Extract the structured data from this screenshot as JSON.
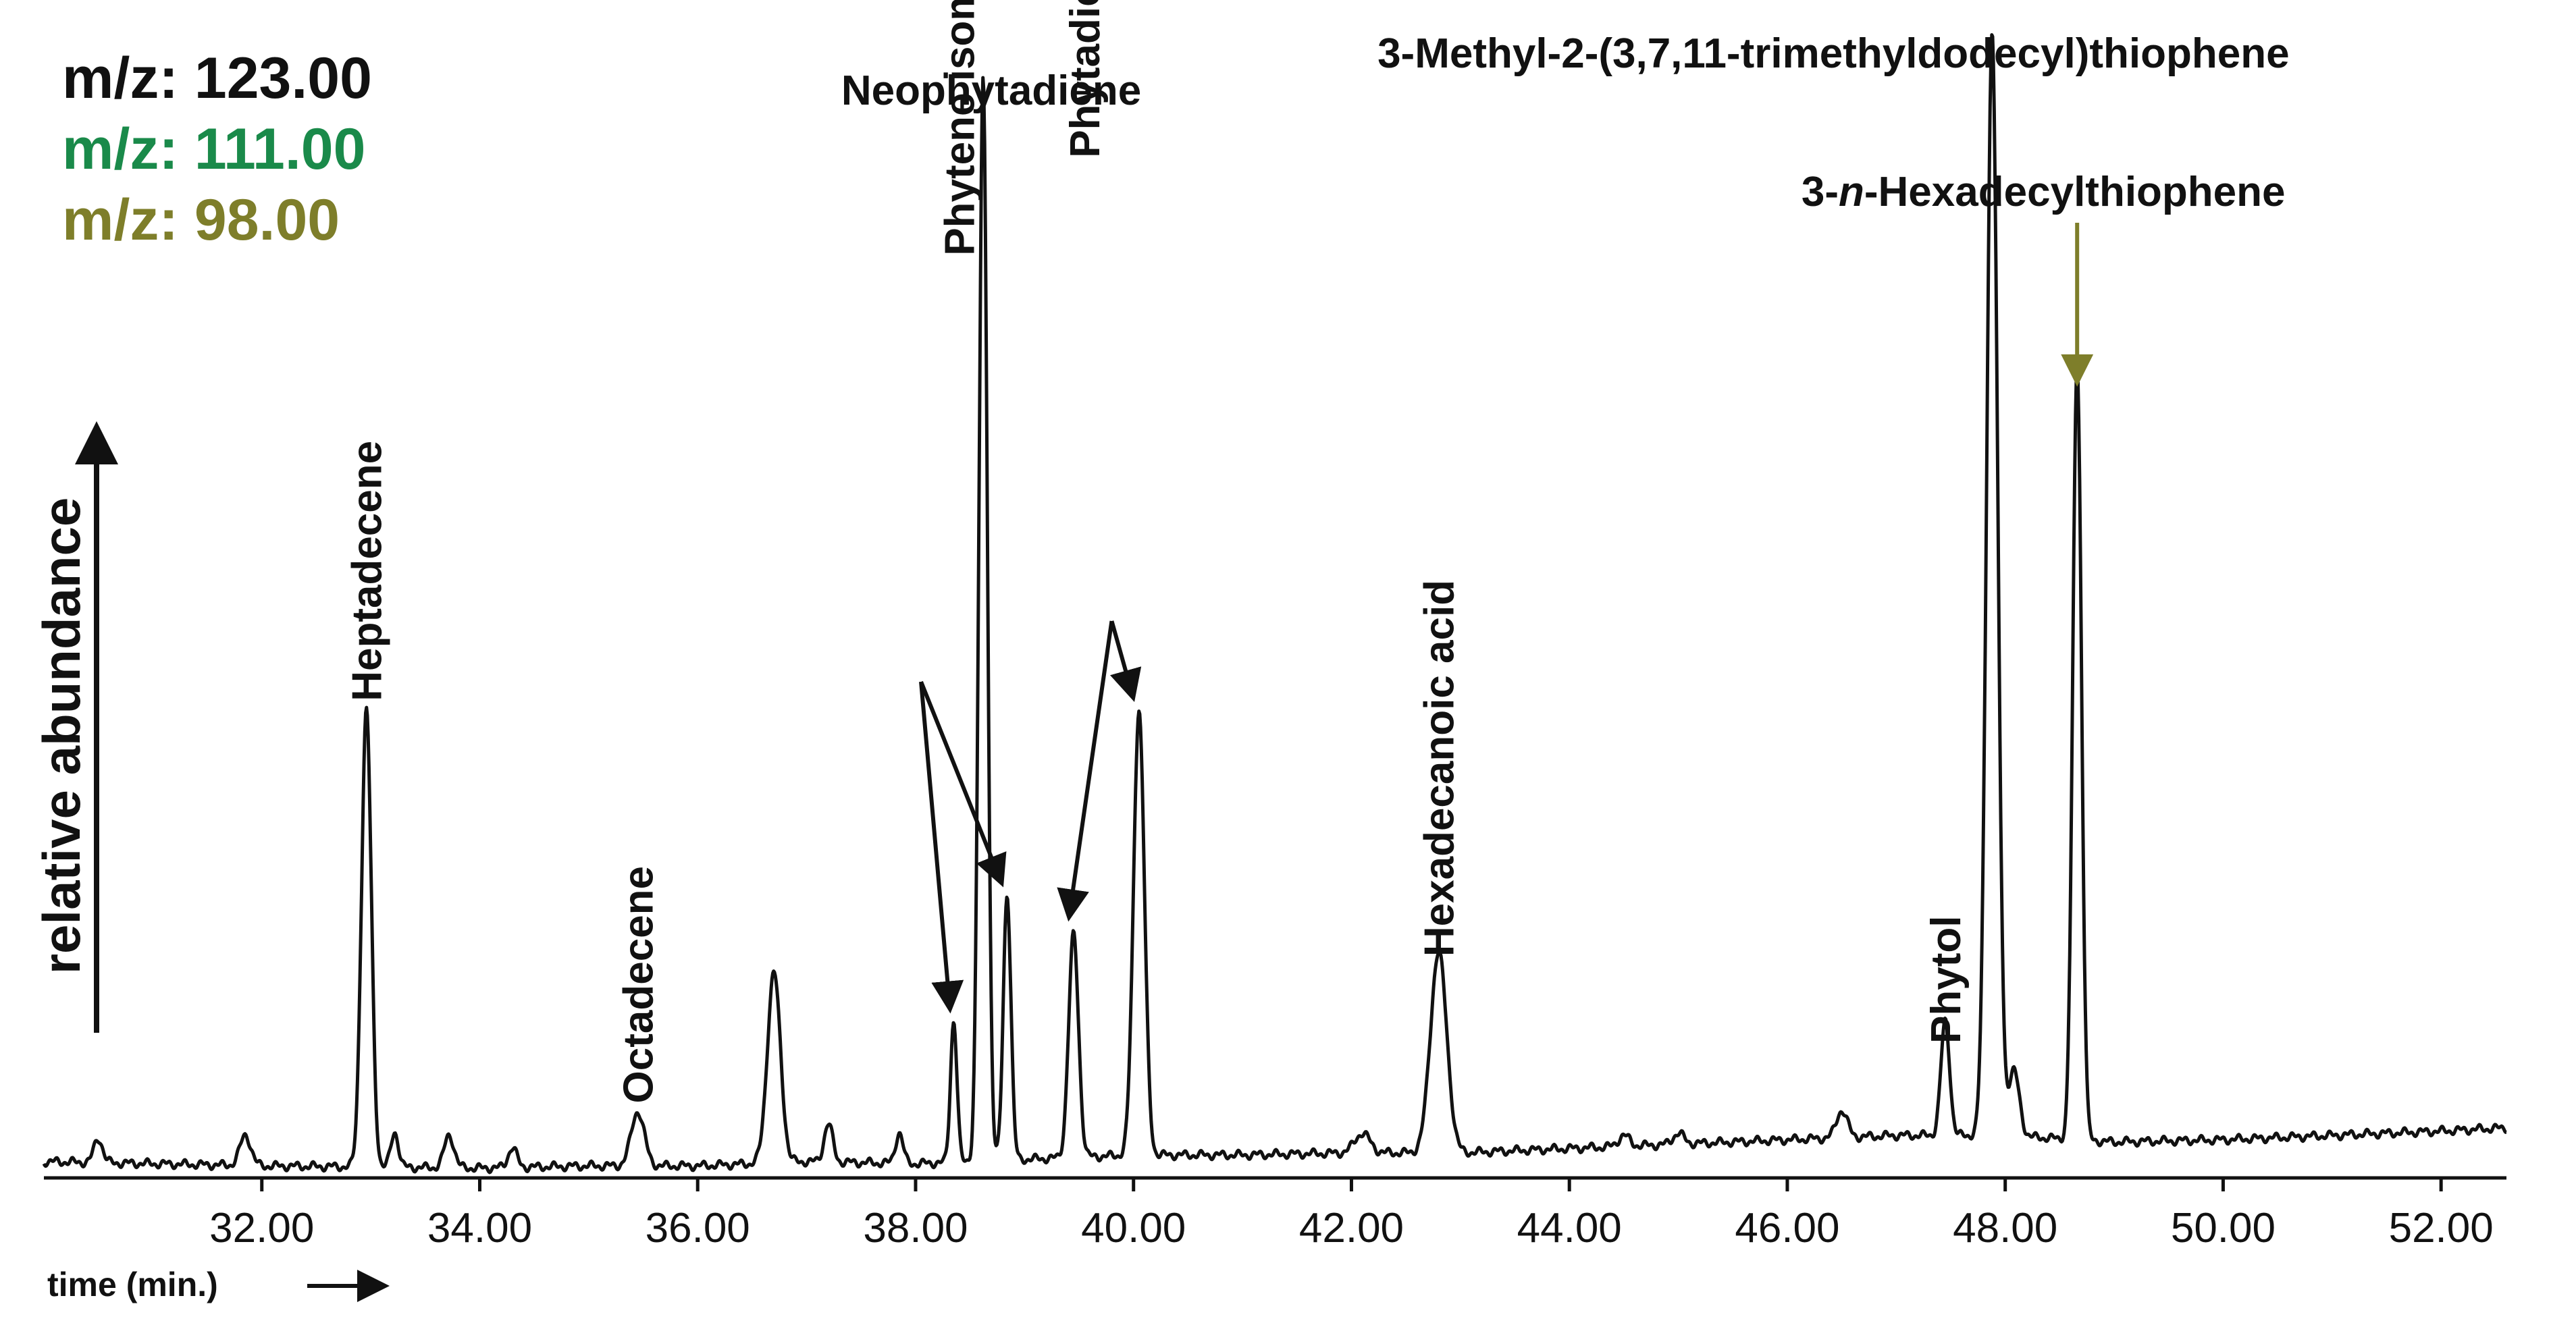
{
  "chart_data": {
    "type": "line",
    "title": "",
    "xlabel": "time (min.)",
    "ylabel": "relative abundance",
    "xlim": [
      30.0,
      52.6
    ],
    "ylim": [
      0,
      100
    ],
    "xticks": [
      "32.00",
      "34.00",
      "36.00",
      "38.00",
      "40.00",
      "42.00",
      "44.00",
      "46.00",
      "48.00",
      "50.00",
      "52.00"
    ],
    "grid": false,
    "legend_position": "top-left",
    "legend": [
      {
        "name": "m/z: 123.00",
        "color": "#111111"
      },
      {
        "name": "m/z: 111.00",
        "color": "#1a8a4a"
      },
      {
        "name": "m/z: 98.00",
        "color": "#7e7e2a"
      }
    ],
    "baseline": [
      [
        30.0,
        1.2
      ],
      [
        31.0,
        1.0
      ],
      [
        32.0,
        0.8
      ],
      [
        34.0,
        0.6
      ],
      [
        35.0,
        0.8
      ],
      [
        36.0,
        0.8
      ],
      [
        37.0,
        1.2
      ],
      [
        38.0,
        1.0
      ],
      [
        39.0,
        1.4
      ],
      [
        40.0,
        1.8
      ],
      [
        41.0,
        1.8
      ],
      [
        42.0,
        2.0
      ],
      [
        43.0,
        2.0
      ],
      [
        44.0,
        2.4
      ],
      [
        45.0,
        2.8
      ],
      [
        46.0,
        3.2
      ],
      [
        47.0,
        3.6
      ],
      [
        48.0,
        3.6
      ],
      [
        49.0,
        3.0
      ],
      [
        50.0,
        3.2
      ],
      [
        51.0,
        3.6
      ],
      [
        52.0,
        4.0
      ],
      [
        52.6,
        4.3
      ]
    ],
    "peaks": [
      {
        "rt": 30.5,
        "height": 2.2,
        "width": 0.04
      },
      {
        "rt": 31.85,
        "height": 2.8,
        "width": 0.05
      },
      {
        "rt": 32.96,
        "height": 42.0,
        "width": 0.045
      },
      {
        "rt": 33.22,
        "height": 3.2,
        "width": 0.035
      },
      {
        "rt": 33.72,
        "height": 3.0,
        "width": 0.045
      },
      {
        "rt": 34.3,
        "height": 1.8,
        "width": 0.04
      },
      {
        "rt": 35.45,
        "height": 5.0,
        "width": 0.06
      },
      {
        "rt": 36.7,
        "height": 17.5,
        "width": 0.06
      },
      {
        "rt": 37.2,
        "height": 3.5,
        "width": 0.04
      },
      {
        "rt": 37.85,
        "height": 2.8,
        "width": 0.035
      },
      {
        "rt": 38.35,
        "height": 13.0,
        "width": 0.03
      },
      {
        "rt": 38.62,
        "height": 99.5,
        "width": 0.038
      },
      {
        "rt": 38.84,
        "height": 24.5,
        "width": 0.035
      },
      {
        "rt": 39.45,
        "height": 20.5,
        "width": 0.045
      },
      {
        "rt": 40.05,
        "height": 41.0,
        "width": 0.05
      },
      {
        "rt": 42.1,
        "height": 1.8,
        "width": 0.07
      },
      {
        "rt": 42.8,
        "height": 18.5,
        "width": 0.075
      },
      {
        "rt": 44.5,
        "height": 1.0,
        "width": 0.05
      },
      {
        "rt": 45.0,
        "height": 1.0,
        "width": 0.05
      },
      {
        "rt": 46.5,
        "height": 2.5,
        "width": 0.05
      },
      {
        "rt": 47.45,
        "height": 10.5,
        "width": 0.04
      },
      {
        "rt": 47.88,
        "height": 101.5,
        "width": 0.05
      },
      {
        "rt": 48.08,
        "height": 6.0,
        "width": 0.05
      },
      {
        "rt": 48.66,
        "height": 71.5,
        "width": 0.04
      }
    ],
    "annotations": [
      {
        "text": "Heptadecene",
        "x": 32.96,
        "y": 42.0,
        "orientation": "vertical",
        "color": "#111111"
      },
      {
        "text": "Octadecene",
        "x": 35.45,
        "y": 5.0,
        "orientation": "vertical",
        "color": "#111111"
      },
      {
        "text": "Phytene isomers",
        "x": 38.4,
        "y": 83.0,
        "orientation": "vertical",
        "color": "#111111",
        "arrows_to_rt": [
          38.35,
          38.84
        ]
      },
      {
        "text": "Neophytadiene",
        "x": 38.62,
        "y": 99.5,
        "orientation": "horizontal",
        "color": "#111111"
      },
      {
        "text": "Phytadiene isomers",
        "x": 39.55,
        "y": 92.0,
        "orientation": "vertical",
        "color": "#111111",
        "arrows_to_rt": [
          39.45,
          40.05
        ]
      },
      {
        "text": "Hexadecanoic acid",
        "x": 42.8,
        "y": 18.5,
        "orientation": "vertical",
        "color": "#111111"
      },
      {
        "text": "Phytol",
        "x": 47.45,
        "y": 10.5,
        "orientation": "vertical",
        "color": "#111111"
      },
      {
        "text": "3-Methyl-2-(3,7,11-trimethyldodecyl)thiophene",
        "x": 47.88,
        "y": 101.5,
        "orientation": "horizontal",
        "color": "#1a8a4a"
      },
      {
        "text_parts": [
          "3-",
          "n",
          "-Hexadecylthiophene"
        ],
        "x": 48.66,
        "y": 71.5,
        "orientation": "horizontal",
        "color": "#7e7e2a",
        "arrow": true
      }
    ]
  }
}
